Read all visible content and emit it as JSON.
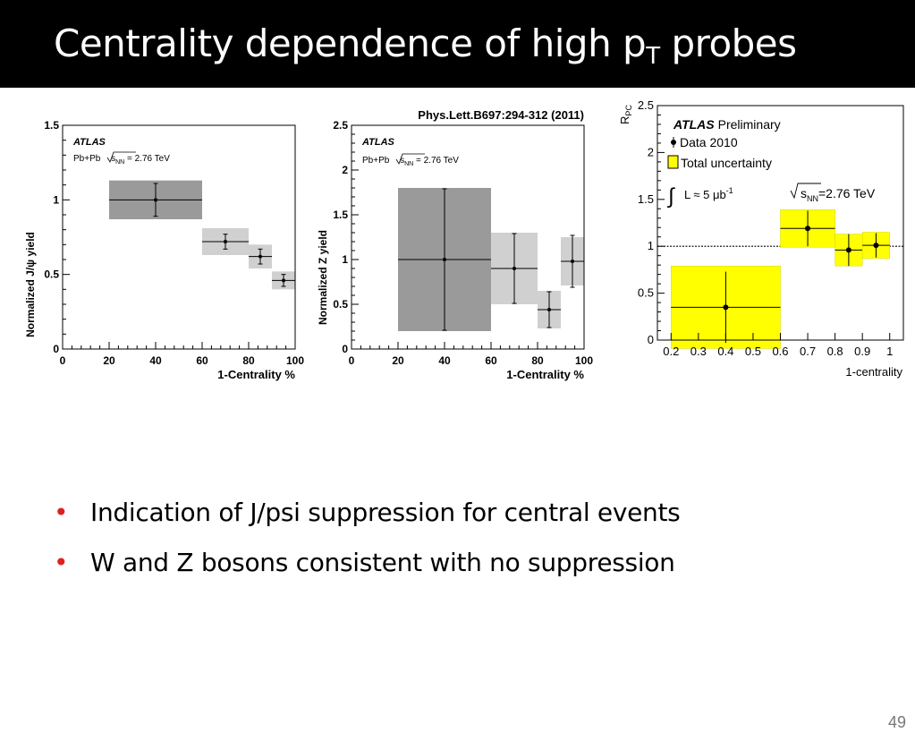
{
  "slide": {
    "title_main": "Centrality dependence of high p",
    "title_sub": "T",
    "title_rest": " probes",
    "bullets": [
      "Indication of J/psi suppression for central events",
      "W and Z bosons consistent with no suppression"
    ],
    "page_number": "49"
  },
  "chart_data": [
    {
      "type": "scatter",
      "ylabel": "Normalized J/ψ yield",
      "xlabel": "1-Centrality %",
      "xlim": [
        0,
        100
      ],
      "ylim": [
        0,
        1.5
      ],
      "xticks": [
        "0",
        "20",
        "40",
        "60",
        "80",
        "100"
      ],
      "yticks": [
        "0",
        "0.5",
        "1",
        "1.5"
      ],
      "annotation_experiment": "ATLAS",
      "annotation_energy_prefix": "Pb+Pb ",
      "annotation_energy_value": "s",
      "annotation_energy_sub": "NN",
      "annotation_energy_suffix": " = 2.76 TeV",
      "colors": {
        "central_box": "#9a9a9a",
        "box": "#d0d0d0"
      },
      "points": [
        {
          "x": 40,
          "xlo": 20,
          "xhi": 60,
          "y": 1.0,
          "err": 0.11,
          "sys": 0.13
        },
        {
          "x": 70,
          "xlo": 60,
          "xhi": 80,
          "y": 0.72,
          "err": 0.05,
          "sys": 0.09
        },
        {
          "x": 85,
          "xlo": 80,
          "xhi": 90,
          "y": 0.62,
          "err": 0.05,
          "sys": 0.08
        },
        {
          "x": 95,
          "xlo": 90,
          "xhi": 100,
          "y": 0.46,
          "err": 0.04,
          "sys": 0.06
        }
      ]
    },
    {
      "type": "scatter",
      "title": "Phys.Lett.B697:294-312 (2011)",
      "ylabel": "Normalized Z yield",
      "xlabel": "1-Centrality %",
      "xlim": [
        0,
        100
      ],
      "ylim": [
        0,
        2.5
      ],
      "xticks": [
        "0",
        "20",
        "40",
        "60",
        "80",
        "100"
      ],
      "yticks": [
        "0",
        "0.5",
        "1",
        "1.5",
        "2",
        "2.5"
      ],
      "annotation_experiment": "ATLAS",
      "annotation_energy_prefix": "Pb+Pb ",
      "annotation_energy_value": "s",
      "annotation_energy_sub": "NN",
      "annotation_energy_suffix": " = 2.76 TeV",
      "colors": {
        "central_box": "#9a9a9a",
        "box": "#d0d0d0"
      },
      "points": [
        {
          "x": 40,
          "xlo": 20,
          "xhi": 60,
          "y": 1.0,
          "err": 0.79,
          "sys": 0.8
        },
        {
          "x": 70,
          "xlo": 60,
          "xhi": 80,
          "y": 0.9,
          "err": 0.39,
          "sys": 0.4
        },
        {
          "x": 85,
          "xlo": 80,
          "xhi": 90,
          "y": 0.44,
          "err": 0.2,
          "sys": 0.21
        },
        {
          "x": 95,
          "xlo": 90,
          "xhi": 100,
          "y": 0.98,
          "err": 0.29,
          "sys": 0.27
        }
      ]
    },
    {
      "type": "scatter",
      "ylabel": "R",
      "ylabel_sub": "PC",
      "xlabel": "1-centrality",
      "xlim": [
        0.15,
        1.05
      ],
      "ylim": [
        0,
        2.5
      ],
      "xticks": [
        "0.2",
        "0.3",
        "0.4",
        "0.5",
        "0.6",
        "0.7",
        "0.8",
        "0.9",
        "1"
      ],
      "yticks": [
        "0",
        "0.5",
        "1",
        "1.5",
        "2",
        "2.5"
      ],
      "legend_experiment": "ATLAS",
      "legend_preliminary": "Preliminary",
      "legend_data": "Data 2010",
      "legend_uncertainty": "Total uncertainty",
      "lumi_prefix": "L ≈ 5 μb",
      "lumi_sup": "-1",
      "energy_value": "s",
      "energy_sub": "NN",
      "energy_suffix": "=2.76 TeV",
      "reference_line": 1,
      "colors": {
        "box": "#ffff00",
        "box_edge": "#d8d800"
      },
      "points": [
        {
          "x": 0.4,
          "xlo": 0.2,
          "xhi": 0.6,
          "y": 0.35,
          "err": 0.38,
          "sys": 0.44
        },
        {
          "x": 0.7,
          "xlo": 0.6,
          "xhi": 0.8,
          "y": 1.19,
          "err": 0.19,
          "sys": 0.2
        },
        {
          "x": 0.85,
          "xlo": 0.8,
          "xhi": 0.9,
          "y": 0.96,
          "err": 0.17,
          "sys": 0.17
        },
        {
          "x": 0.95,
          "xlo": 0.9,
          "xhi": 1.0,
          "y": 1.01,
          "err": 0.13,
          "sys": 0.14
        }
      ]
    }
  ]
}
